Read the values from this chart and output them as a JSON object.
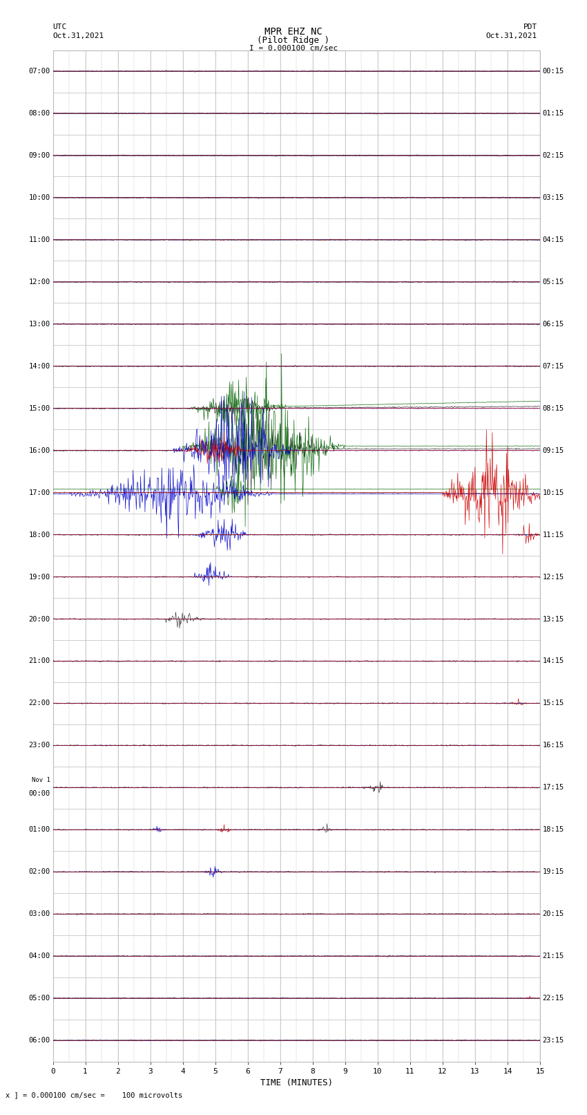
{
  "title_line1": "MPR EHZ NC",
  "title_line2": "(Pilot Ridge )",
  "title_scale": "I = 0.000100 cm/sec",
  "left_timezone": "UTC",
  "left_date": "Oct.31,2021",
  "right_timezone": "PDT",
  "right_date": "Oct.31,2021",
  "bottom_label": "TIME (MINUTES)",
  "bottom_note": "x ] = 0.000100 cm/sec =    100 microvolts",
  "utc_times": [
    "07:00",
    "08:00",
    "09:00",
    "10:00",
    "11:00",
    "12:00",
    "13:00",
    "14:00",
    "15:00",
    "16:00",
    "17:00",
    "18:00",
    "19:00",
    "20:00",
    "21:00",
    "22:00",
    "23:00",
    "Nov 1\n00:00",
    "01:00",
    "02:00",
    "03:00",
    "04:00",
    "05:00",
    "06:00"
  ],
  "pdt_times": [
    "00:15",
    "01:15",
    "02:15",
    "03:15",
    "04:15",
    "05:15",
    "06:15",
    "07:15",
    "08:15",
    "09:15",
    "10:15",
    "11:15",
    "12:15",
    "13:15",
    "14:15",
    "15:15",
    "16:15",
    "17:15",
    "18:15",
    "19:15",
    "20:15",
    "21:15",
    "22:15",
    "23:15"
  ],
  "n_rows": 24,
  "minutes_per_row": 15,
  "bg_color": "#ffffff",
  "grid_color": "#bbbbbb",
  "line_color_black": "#000000",
  "line_color_green": "#006400",
  "line_color_blue": "#0000cc",
  "line_color_red": "#cc0000",
  "text_color": "#000000",
  "font_family": "monospace"
}
